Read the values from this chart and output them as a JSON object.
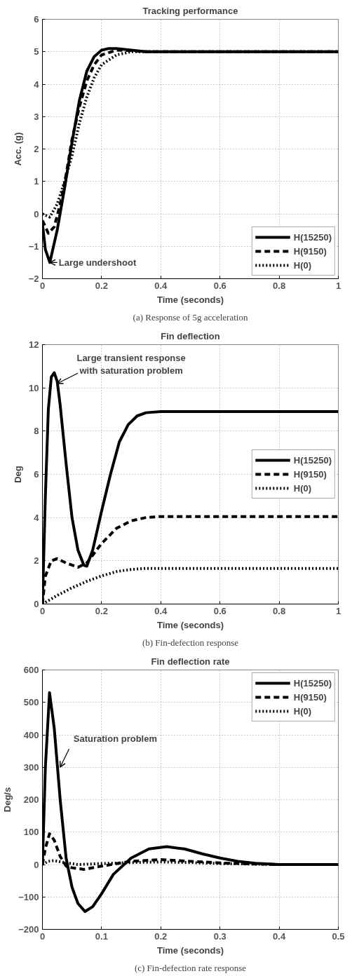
{
  "chart_data": [
    {
      "type": "line",
      "title": "Tracking performance",
      "xlabel": "Time (seconds)",
      "ylabel": "Acc. (g)",
      "xlim": [
        0,
        1
      ],
      "ylim": [
        -2,
        6
      ],
      "xticks": [
        0,
        0.2,
        0.4,
        0.6,
        0.8,
        1
      ],
      "yticks": [
        -2,
        -1,
        0,
        1,
        2,
        3,
        4,
        5,
        6
      ],
      "grid": true,
      "legend": "bottom right",
      "marker": "none",
      "annotations": [
        {
          "text": "Large undershoot",
          "x": 0.025,
          "y": -1.5
        },
        "(a) Response of 5g acceleration"
      ],
      "series": [
        {
          "name": "H(15250)",
          "color": "#000000",
          "line_style": "solid",
          "x": [
            0,
            0.01,
            0.025,
            0.05,
            0.075,
            0.1,
            0.125,
            0.15,
            0.175,
            0.2,
            0.225,
            0.25,
            0.3,
            0.35,
            1
          ],
          "values": [
            -0.3,
            -1.1,
            -1.5,
            -0.5,
            0.8,
            2.2,
            3.5,
            4.4,
            4.85,
            5.05,
            5.1,
            5.1,
            5.05,
            5.0,
            5.0
          ]
        },
        {
          "name": "H(9150)",
          "color": "#000000",
          "line_style": "dashed",
          "x": [
            0,
            0.02,
            0.04,
            0.06,
            0.08,
            0.1,
            0.125,
            0.15,
            0.175,
            0.2,
            0.25,
            0.3,
            0.35,
            1
          ],
          "values": [
            -0.2,
            -0.6,
            -0.4,
            0.3,
            1.2,
            2.3,
            3.3,
            4.1,
            4.6,
            4.9,
            5.05,
            5.03,
            5.0,
            5.0
          ]
        },
        {
          "name": "H(0)",
          "color": "#000000",
          "line_style": "dotted",
          "x": [
            0,
            0.025,
            0.05,
            0.075,
            0.1,
            0.125,
            0.15,
            0.175,
            0.2,
            0.25,
            0.3,
            1
          ],
          "values": [
            0,
            -0.1,
            0.3,
            1.0,
            1.8,
            2.8,
            3.6,
            4.2,
            4.6,
            4.9,
            5.0,
            5.0
          ]
        }
      ]
    },
    {
      "type": "line",
      "title": "Fin deflection",
      "xlabel": "Time (seconds)",
      "ylabel": "Deg",
      "xlim": [
        0,
        1
      ],
      "ylim": [
        0,
        12
      ],
      "xticks": [
        0,
        0.2,
        0.4,
        0.6,
        0.8,
        1
      ],
      "yticks": [
        0,
        2,
        4,
        6,
        8,
        10,
        12
      ],
      "grid": true,
      "legend": "right",
      "marker": "none",
      "annotations": [
        {
          "text": "Large transient response\nwith saturation problem",
          "x": 0.05,
          "y": 10.2
        },
        "(b) Fin-defection response"
      ],
      "series": [
        {
          "name": "H(15250)",
          "color": "#000000",
          "line_style": "solid",
          "x": [
            0,
            0.01,
            0.02,
            0.03,
            0.04,
            0.05,
            0.06,
            0.08,
            0.1,
            0.12,
            0.14,
            0.15,
            0.17,
            0.2,
            0.23,
            0.26,
            0.29,
            0.32,
            0.35,
            0.4,
            1
          ],
          "values": [
            0,
            5,
            9,
            10.5,
            10.7,
            10.3,
            9.2,
            6.5,
            4,
            2.5,
            1.8,
            1.75,
            2.5,
            4.3,
            6,
            7.5,
            8.3,
            8.7,
            8.85,
            8.9,
            8.9
          ]
        },
        {
          "name": "H(9150)",
          "color": "#000000",
          "line_style": "dashed",
          "x": [
            0,
            0.01,
            0.03,
            0.05,
            0.08,
            0.12,
            0.15,
            0.2,
            0.25,
            0.3,
            0.35,
            0.4,
            1
          ],
          "values": [
            0,
            1.3,
            2.0,
            2.1,
            1.9,
            1.7,
            1.9,
            2.8,
            3.5,
            3.85,
            4.0,
            4.05,
            4.05
          ]
        },
        {
          "name": "H(0)",
          "color": "#000000",
          "line_style": "dotted",
          "x": [
            0,
            0.05,
            0.1,
            0.15,
            0.2,
            0.25,
            0.3,
            0.35,
            1
          ],
          "values": [
            0,
            0.4,
            0.75,
            1.05,
            1.3,
            1.5,
            1.6,
            1.65,
            1.65
          ]
        }
      ]
    },
    {
      "type": "line",
      "title": "Fin deflection rate",
      "xlabel": "Time (seconds)",
      "ylabel": "Deg/s",
      "xlim": [
        0,
        0.5
      ],
      "ylim": [
        -200,
        600
      ],
      "xticks": [
        0,
        0.1,
        0.2,
        0.3,
        0.4,
        0.5
      ],
      "yticks": [
        -200,
        -100,
        0,
        100,
        200,
        300,
        400,
        500,
        600
      ],
      "grid": true,
      "legend": "top right",
      "marker": "none",
      "annotations": [
        {
          "text": "Saturation problem",
          "x": 0.03,
          "y": 300
        },
        "(c) Fin-defection rate response"
      ],
      "series": [
        {
          "name": "H(15250)",
          "color": "#000000",
          "line_style": "solid",
          "x": [
            0,
            0.005,
            0.012,
            0.02,
            0.03,
            0.04,
            0.05,
            0.06,
            0.072,
            0.085,
            0.1,
            0.12,
            0.15,
            0.18,
            0.21,
            0.24,
            0.27,
            0.3,
            0.33,
            0.36,
            0.4,
            0.5
          ],
          "values": [
            0,
            300,
            530,
            420,
            200,
            20,
            -70,
            -120,
            -145,
            -130,
            -90,
            -30,
            20,
            48,
            55,
            48,
            33,
            20,
            10,
            4,
            0,
            0
          ]
        },
        {
          "name": "H(9150)",
          "color": "#000000",
          "line_style": "dashed",
          "x": [
            0,
            0.005,
            0.012,
            0.02,
            0.03,
            0.04,
            0.05,
            0.07,
            0.1,
            0.15,
            0.2,
            0.25,
            0.3,
            0.35,
            0.4,
            0.5
          ],
          "values": [
            0,
            50,
            95,
            75,
            25,
            -5,
            -10,
            -15,
            -5,
            10,
            15,
            10,
            5,
            2,
            0,
            0
          ]
        },
        {
          "name": "H(0)",
          "color": "#000000",
          "line_style": "dotted",
          "x": [
            0,
            0.01,
            0.02,
            0.04,
            0.06,
            0.1,
            0.15,
            0.2,
            0.25,
            0.3,
            0.4,
            0.5
          ],
          "values": [
            0,
            10,
            12,
            5,
            0,
            3,
            6,
            8,
            6,
            3,
            0,
            0
          ]
        }
      ]
    }
  ]
}
